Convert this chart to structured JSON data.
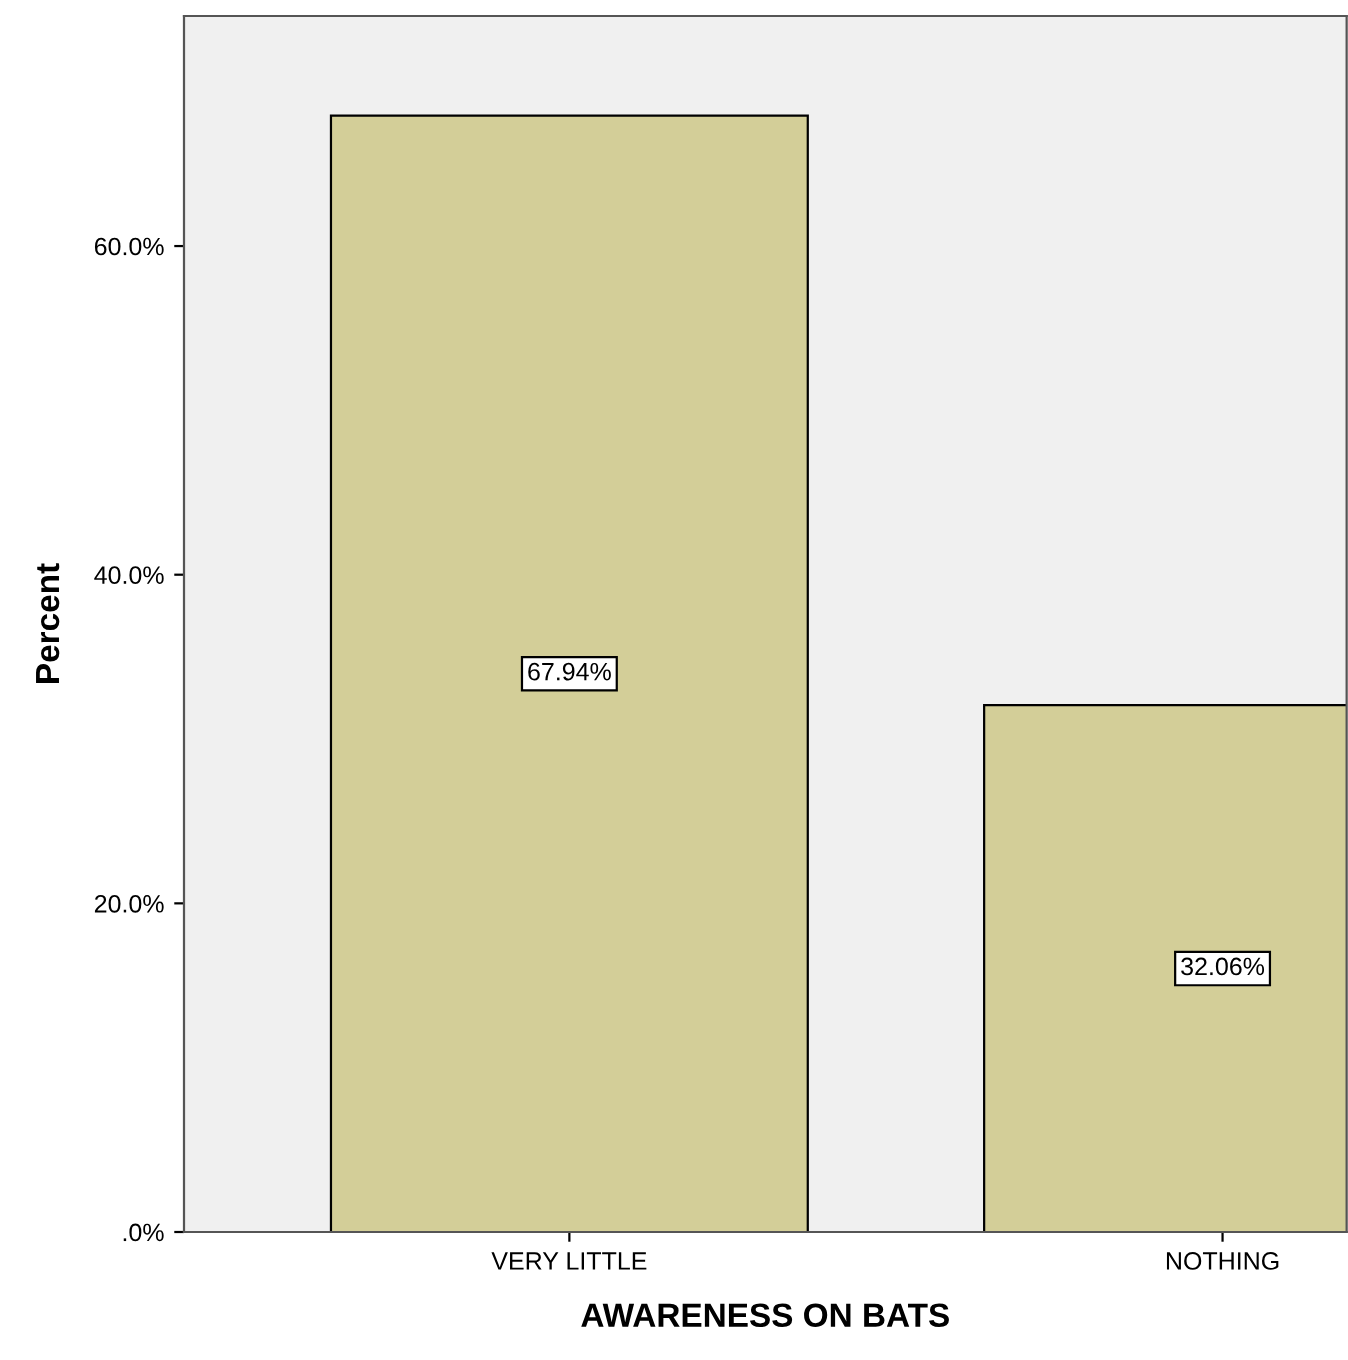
{
  "chart_data": {
    "type": "bar",
    "xlabel": "AWARENESS ON BATS",
    "ylabel": "Percent",
    "categories": [
      "VERY LITTLE",
      "NOTHING"
    ],
    "values": [
      67.94,
      32.06
    ],
    "value_labels": [
      "67.94%",
      "32.06%"
    ],
    "color": "#d3ce98",
    "ylim": [
      0,
      74
    ],
    "yticks": [
      {
        "value": 0,
        "label": ".0%"
      },
      {
        "value": 20,
        "label": "20.0%"
      },
      {
        "value": 40,
        "label": "40.0%"
      },
      {
        "value": 60,
        "label": "60.0%"
      }
    ],
    "grid": false,
    "legend": false
  }
}
